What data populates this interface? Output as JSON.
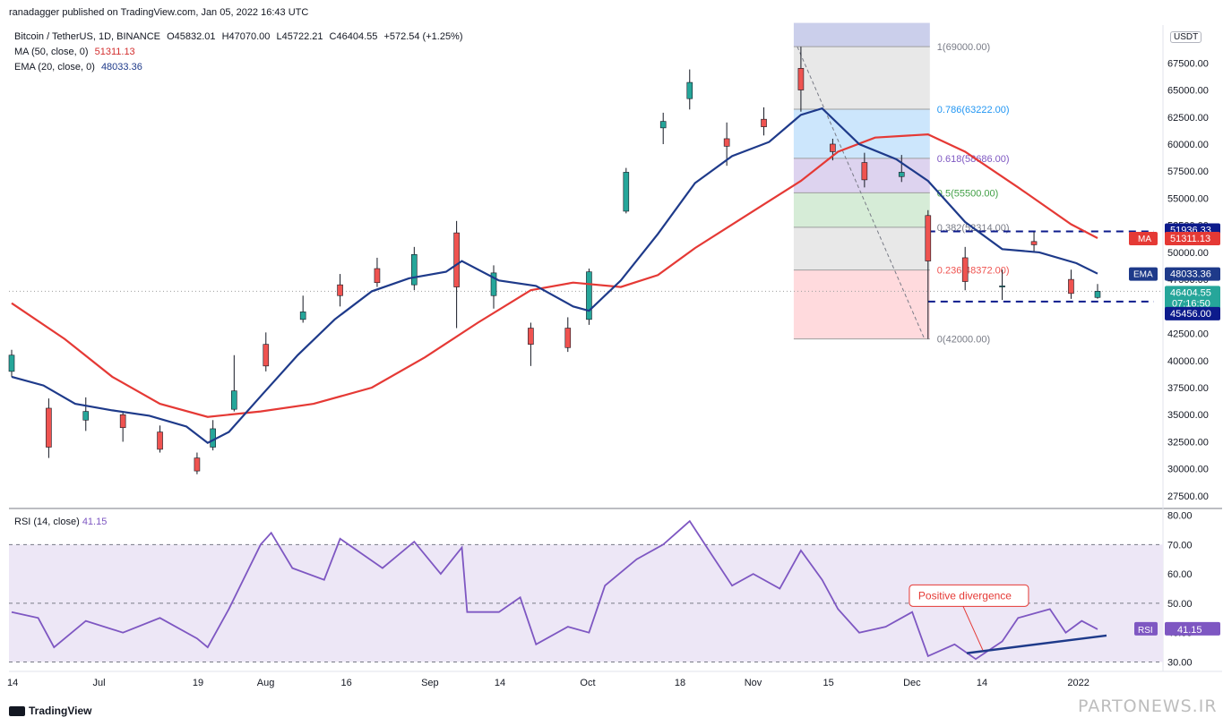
{
  "header": {
    "publisher": "ranadagger published on TradingView.com, Jan 05, 2022 16:43 UTC",
    "symbol": "Bitcoin / TetherUS, 1D, BINANCE",
    "open": "O45832.01",
    "high": "H47070.00",
    "low": "L45722.21",
    "close": "C46404.55",
    "change": "+572.54 (+1.25%)",
    "ma_label": "MA (50, close, 0)",
    "ma_value": "51311.13",
    "ema_label": "EMA (20, close, 0)",
    "ema_value": "48033.36",
    "rsi_label": "RSI (14, close)",
    "rsi_value": "41.15",
    "currency": "USDT"
  },
  "colors": {
    "up": "#26a69a",
    "down": "#ef5350",
    "ema": "#1e3a8a",
    "ma": "#e53935",
    "rsi": "#7e57c2",
    "rsi_band": "#ede7f6",
    "trendline": "#1e3a8a"
  },
  "chart_data": [
    {
      "type": "candlestick",
      "title": "Bitcoin / TetherUS, 1D, BINANCE",
      "y_axis": {
        "ticks": [
          "27500.00",
          "30000.00",
          "32500.00",
          "35000.00",
          "37500.00",
          "40000.00",
          "42500.00",
          "45000.00",
          "47500.00",
          "50000.00",
          "52500.00",
          "55000.00",
          "57500.00",
          "60000.00",
          "62500.00",
          "65000.00",
          "67500.00"
        ],
        "range": [
          26500,
          71000
        ]
      },
      "x_axis": {
        "ticks": [
          "14",
          "Jul",
          "19",
          "Aug",
          "16",
          "Sep",
          "14",
          "Oct",
          "18",
          "Nov",
          "15",
          "Dec",
          "14",
          "2022"
        ],
        "date_range": [
          "2021-06-14",
          "2022-01-05"
        ]
      },
      "price_labels": [
        {
          "text": "51936.33",
          "value": 51936.33,
          "kind": "resistance"
        },
        {
          "text": "51311.13",
          "value": 51311.13,
          "kind": "ma",
          "tag": "MA"
        },
        {
          "text": "48033.36",
          "value": 48033.36,
          "kind": "ema",
          "tag": "EMA"
        },
        {
          "text": "46404.55",
          "value": 46404.55,
          "kind": "last",
          "sub": "07:16:50"
        },
        {
          "text": "45456.00",
          "value": 45456.0,
          "kind": "support"
        }
      ],
      "fibonacci": {
        "levels": [
          {
            "label": "1(69000.00)",
            "value": 69000
          },
          {
            "label": "0.786(63222.00)",
            "value": 63222
          },
          {
            "label": "0.618(58686.00)",
            "value": 58686
          },
          {
            "label": "0.5(55500.00)",
            "value": 55500
          },
          {
            "label": "0.382(52314.00)",
            "value": 52314
          },
          {
            "label": "0.236(48372.00)",
            "value": 48372
          },
          {
            "label": "0(42000.00)",
            "value": 42000
          }
        ],
        "fill_colors": [
          "#c5cae9",
          "#e0e0e0",
          "#bbdefb",
          "#d1c4e9",
          "#c8e6c9",
          "#e0e0e0",
          "#ffcdd2"
        ],
        "date_range": [
          "2021-11-10",
          "2021-12-04"
        ]
      },
      "horizontal_lines": [
        {
          "value": 51936.33,
          "date_range": [
            "2021-12-04",
            "2022-01-05"
          ]
        },
        {
          "value": 45456.0,
          "date_range": [
            "2021-12-04",
            "2022-01-05"
          ]
        }
      ],
      "ema20": [
        {
          "date": "2021-06-14",
          "value": 38500
        },
        {
          "date": "2021-06-20",
          "value": 37700
        },
        {
          "date": "2021-06-26",
          "value": 36000
        },
        {
          "date": "2021-07-03",
          "value": 35400
        },
        {
          "date": "2021-07-10",
          "value": 34900
        },
        {
          "date": "2021-07-17",
          "value": 33900
        },
        {
          "date": "2021-07-21",
          "value": 32400
        },
        {
          "date": "2021-07-25",
          "value": 33400
        },
        {
          "date": "2021-07-31",
          "value": 36700
        },
        {
          "date": "2021-08-07",
          "value": 40500
        },
        {
          "date": "2021-08-14",
          "value": 43800
        },
        {
          "date": "2021-08-21",
          "value": 46400
        },
        {
          "date": "2021-08-28",
          "value": 47600
        },
        {
          "date": "2021-09-04",
          "value": 48200
        },
        {
          "date": "2021-09-07",
          "value": 49200
        },
        {
          "date": "2021-09-14",
          "value": 47400
        },
        {
          "date": "2021-09-21",
          "value": 46900
        },
        {
          "date": "2021-09-28",
          "value": 45000
        },
        {
          "date": "2021-10-01",
          "value": 44600
        },
        {
          "date": "2021-10-07",
          "value": 47400
        },
        {
          "date": "2021-10-14",
          "value": 51700
        },
        {
          "date": "2021-10-21",
          "value": 56400
        },
        {
          "date": "2021-10-28",
          "value": 58900
        },
        {
          "date": "2021-11-04",
          "value": 60200
        },
        {
          "date": "2021-11-10",
          "value": 62700
        },
        {
          "date": "2021-11-14",
          "value": 63300
        },
        {
          "date": "2021-11-21",
          "value": 60000
        },
        {
          "date": "2021-11-28",
          "value": 58600
        },
        {
          "date": "2021-12-04",
          "value": 56600
        },
        {
          "date": "2021-12-11",
          "value": 52800
        },
        {
          "date": "2021-12-18",
          "value": 50300
        },
        {
          "date": "2021-12-25",
          "value": 50000
        },
        {
          "date": "2022-01-01",
          "value": 49000
        },
        {
          "date": "2022-01-05",
          "value": 48033
        }
      ],
      "ma50": [
        {
          "date": "2021-06-14",
          "value": 45300
        },
        {
          "date": "2021-06-24",
          "value": 42000
        },
        {
          "date": "2021-07-03",
          "value": 38500
        },
        {
          "date": "2021-07-12",
          "value": 36000
        },
        {
          "date": "2021-07-21",
          "value": 34800
        },
        {
          "date": "2021-07-31",
          "value": 35300
        },
        {
          "date": "2021-08-10",
          "value": 36000
        },
        {
          "date": "2021-08-21",
          "value": 37500
        },
        {
          "date": "2021-08-31",
          "value": 40300
        },
        {
          "date": "2021-09-10",
          "value": 43500
        },
        {
          "date": "2021-09-20",
          "value": 46500
        },
        {
          "date": "2021-09-28",
          "value": 47200
        },
        {
          "date": "2021-10-07",
          "value": 46800
        },
        {
          "date": "2021-10-14",
          "value": 47900
        },
        {
          "date": "2021-10-21",
          "value": 50400
        },
        {
          "date": "2021-10-31",
          "value": 53500
        },
        {
          "date": "2021-11-10",
          "value": 56600
        },
        {
          "date": "2021-11-17",
          "value": 59300
        },
        {
          "date": "2021-11-24",
          "value": 60600
        },
        {
          "date": "2021-12-04",
          "value": 60900
        },
        {
          "date": "2021-12-11",
          "value": 59300
        },
        {
          "date": "2021-12-21",
          "value": 56000
        },
        {
          "date": "2021-12-31",
          "value": 52600
        },
        {
          "date": "2022-01-05",
          "value": 51311
        }
      ],
      "candles": [
        {
          "date": "2021-06-14",
          "o": 39000,
          "h": 41000,
          "l": 38500,
          "c": 40500
        },
        {
          "date": "2021-06-21",
          "o": 35600,
          "h": 36500,
          "l": 31000,
          "c": 32000
        },
        {
          "date": "2021-06-28",
          "o": 34500,
          "h": 36600,
          "l": 33500,
          "c": 35300
        },
        {
          "date": "2021-07-05",
          "o": 35000,
          "h": 35200,
          "l": 32500,
          "c": 33800
        },
        {
          "date": "2021-07-12",
          "o": 33400,
          "h": 34000,
          "l": 31500,
          "c": 31800
        },
        {
          "date": "2021-07-19",
          "o": 31000,
          "h": 31500,
          "l": 29500,
          "c": 29800
        },
        {
          "date": "2021-07-22",
          "o": 32000,
          "h": 34500,
          "l": 31700,
          "c": 33700
        },
        {
          "date": "2021-07-26",
          "o": 35500,
          "h": 40500,
          "l": 35300,
          "c": 37200
        },
        {
          "date": "2021-08-01",
          "o": 41500,
          "h": 42600,
          "l": 39000,
          "c": 39500
        },
        {
          "date": "2021-08-08",
          "o": 43800,
          "h": 46000,
          "l": 43500,
          "c": 44500
        },
        {
          "date": "2021-08-15",
          "o": 47000,
          "h": 48000,
          "l": 45000,
          "c": 46000
        },
        {
          "date": "2021-08-22",
          "o": 48500,
          "h": 49500,
          "l": 46800,
          "c": 47200
        },
        {
          "date": "2021-08-29",
          "o": 47000,
          "h": 50500,
          "l": 46500,
          "c": 49800
        },
        {
          "date": "2021-09-06",
          "o": 51800,
          "h": 52900,
          "l": 43000,
          "c": 46800
        },
        {
          "date": "2021-09-13",
          "o": 46000,
          "h": 48800,
          "l": 44800,
          "c": 48100
        },
        {
          "date": "2021-09-20",
          "o": 43000,
          "h": 43500,
          "l": 39500,
          "c": 41500
        },
        {
          "date": "2021-09-27",
          "o": 43000,
          "h": 44000,
          "l": 40800,
          "c": 41200
        },
        {
          "date": "2021-10-01",
          "o": 43800,
          "h": 48500,
          "l": 43300,
          "c": 48200
        },
        {
          "date": "2021-10-08",
          "o": 53800,
          "h": 57800,
          "l": 53600,
          "c": 57400
        },
        {
          "date": "2021-10-15",
          "o": 61500,
          "h": 62900,
          "l": 60000,
          "c": 62100
        },
        {
          "date": "2021-10-20",
          "o": 64200,
          "h": 66900,
          "l": 63200,
          "c": 65700
        },
        {
          "date": "2021-10-27",
          "o": 60500,
          "h": 62000,
          "l": 58000,
          "c": 59800
        },
        {
          "date": "2021-11-03",
          "o": 62300,
          "h": 63400,
          "l": 60800,
          "c": 61600
        },
        {
          "date": "2021-11-10",
          "o": 67000,
          "h": 69000,
          "l": 63000,
          "c": 65000
        },
        {
          "date": "2021-11-16",
          "o": 60000,
          "h": 60500,
          "l": 58500,
          "c": 59300
        },
        {
          "date": "2021-11-22",
          "o": 58300,
          "h": 59200,
          "l": 56000,
          "c": 56700
        },
        {
          "date": "2021-11-29",
          "o": 57000,
          "h": 59000,
          "l": 56500,
          "c": 57400
        },
        {
          "date": "2021-12-04",
          "o": 53400,
          "h": 53900,
          "l": 42000,
          "c": 49200
        },
        {
          "date": "2021-12-11",
          "o": 49500,
          "h": 50500,
          "l": 46500,
          "c": 47300
        },
        {
          "date": "2021-12-18",
          "o": 46800,
          "h": 48400,
          "l": 45600,
          "c": 46900
        },
        {
          "date": "2021-12-24",
          "o": 51000,
          "h": 51900,
          "l": 50000,
          "c": 50700
        },
        {
          "date": "2021-12-31",
          "o": 47500,
          "h": 48400,
          "l": 45700,
          "c": 46200
        },
        {
          "date": "2022-01-05",
          "o": 45832.01,
          "h": 47070,
          "l": 45722.21,
          "c": 46404.55
        }
      ]
    },
    {
      "type": "line",
      "title": "RSI (14, close)",
      "y_axis": {
        "ticks": [
          "30.00",
          "40.00",
          "50.00",
          "60.00",
          "70.00",
          "80.00"
        ],
        "range": [
          28,
          82
        ]
      },
      "band": [
        30,
        70
      ],
      "midline": 50,
      "series": [
        {
          "values": [
            {
              "date": "2021-06-14",
              "value": 47
            },
            {
              "date": "2021-06-19",
              "value": 45
            },
            {
              "date": "2021-06-22",
              "value": 35
            },
            {
              "date": "2021-06-28",
              "value": 44
            },
            {
              "date": "2021-07-05",
              "value": 40
            },
            {
              "date": "2021-07-12",
              "value": 45
            },
            {
              "date": "2021-07-19",
              "value": 38
            },
            {
              "date": "2021-07-21",
              "value": 35
            },
            {
              "date": "2021-07-25",
              "value": 48
            },
            {
              "date": "2021-07-31",
              "value": 70
            },
            {
              "date": "2021-08-02",
              "value": 74
            },
            {
              "date": "2021-08-06",
              "value": 62
            },
            {
              "date": "2021-08-12",
              "value": 58
            },
            {
              "date": "2021-08-15",
              "value": 72
            },
            {
              "date": "2021-08-23",
              "value": 62
            },
            {
              "date": "2021-08-29",
              "value": 71
            },
            {
              "date": "2021-09-03",
              "value": 60
            },
            {
              "date": "2021-09-07",
              "value": 69
            },
            {
              "date": "2021-09-08",
              "value": 47
            },
            {
              "date": "2021-09-14",
              "value": 47
            },
            {
              "date": "2021-09-18",
              "value": 52
            },
            {
              "date": "2021-09-21",
              "value": 36
            },
            {
              "date": "2021-09-27",
              "value": 42
            },
            {
              "date": "2021-10-01",
              "value": 40
            },
            {
              "date": "2021-10-04",
              "value": 56
            },
            {
              "date": "2021-10-10",
              "value": 65
            },
            {
              "date": "2021-10-15",
              "value": 70
            },
            {
              "date": "2021-10-20",
              "value": 78
            },
            {
              "date": "2021-10-24",
              "value": 67
            },
            {
              "date": "2021-10-28",
              "value": 56
            },
            {
              "date": "2021-11-01",
              "value": 60
            },
            {
              "date": "2021-11-06",
              "value": 55
            },
            {
              "date": "2021-11-10",
              "value": 68
            },
            {
              "date": "2021-11-14",
              "value": 58
            },
            {
              "date": "2021-11-17",
              "value": 48
            },
            {
              "date": "2021-11-21",
              "value": 40
            },
            {
              "date": "2021-11-26",
              "value": 42
            },
            {
              "date": "2021-12-01",
              "value": 47
            },
            {
              "date": "2021-12-04",
              "value": 32
            },
            {
              "date": "2021-12-09",
              "value": 36
            },
            {
              "date": "2021-12-13",
              "value": 31
            },
            {
              "date": "2021-12-18",
              "value": 37
            },
            {
              "date": "2021-12-21",
              "value": 45
            },
            {
              "date": "2021-12-27",
              "value": 48
            },
            {
              "date": "2021-12-30",
              "value": 40
            },
            {
              "date": "2022-01-02",
              "value": 44
            },
            {
              "date": "2022-01-05",
              "value": 41.15
            }
          ]
        }
      ],
      "trendline": {
        "start": {
          "date": "2021-12-13",
          "value": 33
        },
        "end": {
          "date": "2022-01-05",
          "value": 39
        }
      },
      "annotation": {
        "text": "Positive divergence",
        "date": "2021-12-14",
        "value": 52
      },
      "value_label": {
        "tag": "RSI",
        "text": "41.15",
        "value": 41.15
      }
    }
  ],
  "footer": {
    "brand": "TradingView",
    "watermark": "PARTONEWS.IR"
  }
}
